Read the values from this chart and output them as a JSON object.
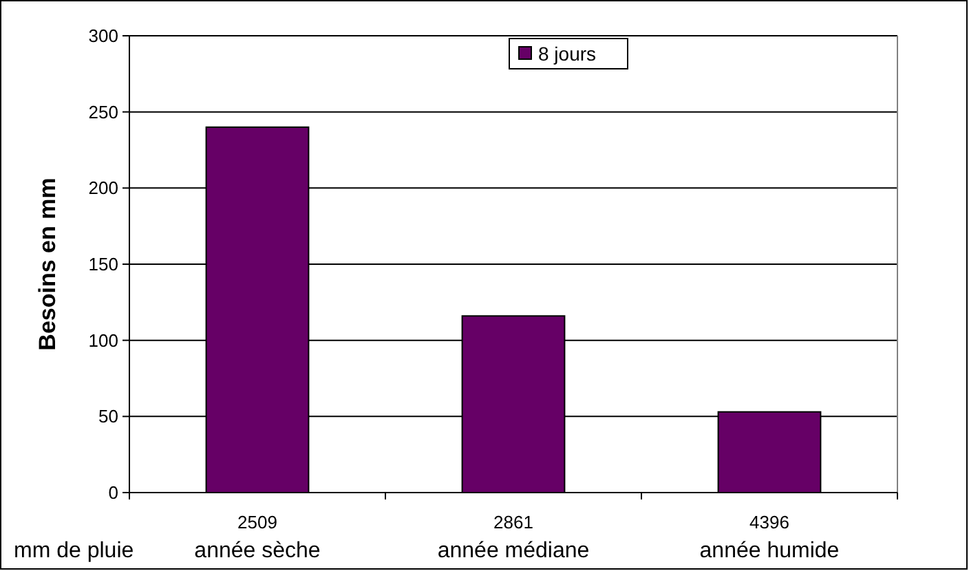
{
  "chart_data": {
    "type": "bar",
    "ylabel": "Besoins en mm",
    "xlabel": "mm de pluie",
    "categories": [
      "2509\nannée sèche",
      "2861\nannée médiane",
      "4396\nannée humide"
    ],
    "series": [
      {
        "name": "8 jours",
        "color": "#660066",
        "values": [
          240,
          116,
          53
        ]
      }
    ],
    "ylim": [
      0,
      300
    ],
    "yticks": [
      0,
      50,
      100,
      150,
      200,
      250,
      300
    ],
    "grid": "y",
    "legend": "top"
  }
}
